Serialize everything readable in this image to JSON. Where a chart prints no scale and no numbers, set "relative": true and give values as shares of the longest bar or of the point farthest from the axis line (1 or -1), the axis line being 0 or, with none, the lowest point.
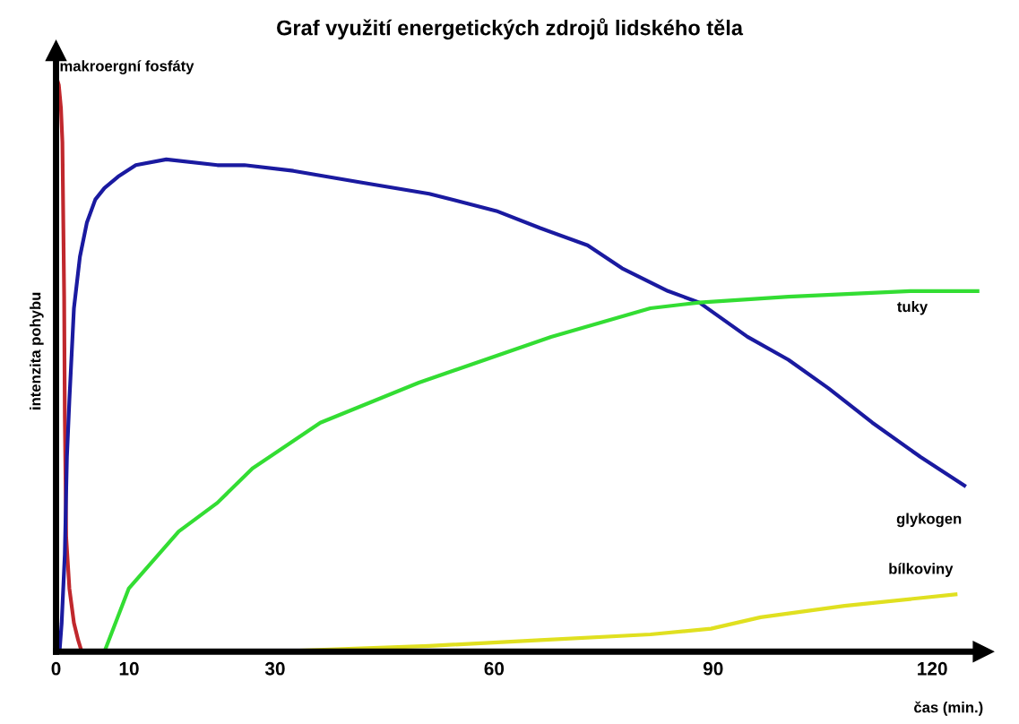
{
  "chart_data": {
    "type": "line",
    "title": "Graf využití energetických zdrojů lidského těla",
    "xlabel": "čas (min.)",
    "ylabel": "intenzita pohybu",
    "relative": true,
    "xlim": [
      0,
      127
    ],
    "xticks": [
      0,
      10,
      30,
      60,
      90,
      120
    ],
    "grid": false,
    "legend": false,
    "marker": "none",
    "line_style": "solid",
    "series": [
      {
        "name": "makroergní fosfáty",
        "color": "#c0282d",
        "x": [
          0.05,
          0.1,
          0.14,
          0.38,
          0.67,
          0.87,
          1.11,
          1.2,
          1.39,
          1.83,
          2.45,
          3.03,
          3.51
        ],
        "values": [
          0,
          0.98,
          1,
          0.99,
          0.95,
          0.89,
          0.62,
          0.41,
          0.2,
          0.11,
          0.05,
          0.02,
          0
        ]
      },
      {
        "name": "glykogen",
        "color": "#1a1aa0",
        "x": [
          0.48,
          0.77,
          1.2,
          1.49,
          1.83,
          2.45,
          3.27,
          4.23,
          5.38,
          6.63,
          8.51,
          10.93,
          15.1,
          22.1,
          25.8,
          32.5,
          41.7,
          51.1,
          60.3,
          66.3,
          72.8,
          77.5,
          83.8,
          88.1,
          94.7,
          100.3,
          105.8,
          111.8,
          118.4,
          124.4
        ],
        "values": [
          0,
          0.05,
          0.17,
          0.34,
          0.44,
          0.6,
          0.69,
          0.75,
          0.79,
          0.81,
          0.83,
          0.85,
          0.86,
          0.85,
          0.85,
          0.84,
          0.82,
          0.8,
          0.77,
          0.74,
          0.71,
          0.67,
          0.63,
          0.61,
          0.55,
          0.51,
          0.46,
          0.4,
          0.34,
          0.29
        ]
      },
      {
        "name": "tuky",
        "color": "#33dd33",
        "x": [
          6.63,
          9.95,
          16.8,
          22.1,
          26.9,
          36.2,
          49.7,
          67.8,
          81.4,
          88.1,
          100.3,
          117,
          126.2
        ],
        "values": [
          0,
          0.11,
          0.21,
          0.26,
          0.32,
          0.4,
          0.47,
          0.55,
          0.6,
          0.61,
          0.62,
          0.63,
          0.63
        ]
      },
      {
        "name": "bílkoviny",
        "color": "#e0e020",
        "x": [
          29.9,
          51.1,
          66.3,
          81.4,
          89.7,
          96.5,
          108,
          123.2
        ],
        "values": [
          0,
          0.01,
          0.02,
          0.03,
          0.04,
          0.06,
          0.08,
          0.1
        ]
      }
    ]
  }
}
